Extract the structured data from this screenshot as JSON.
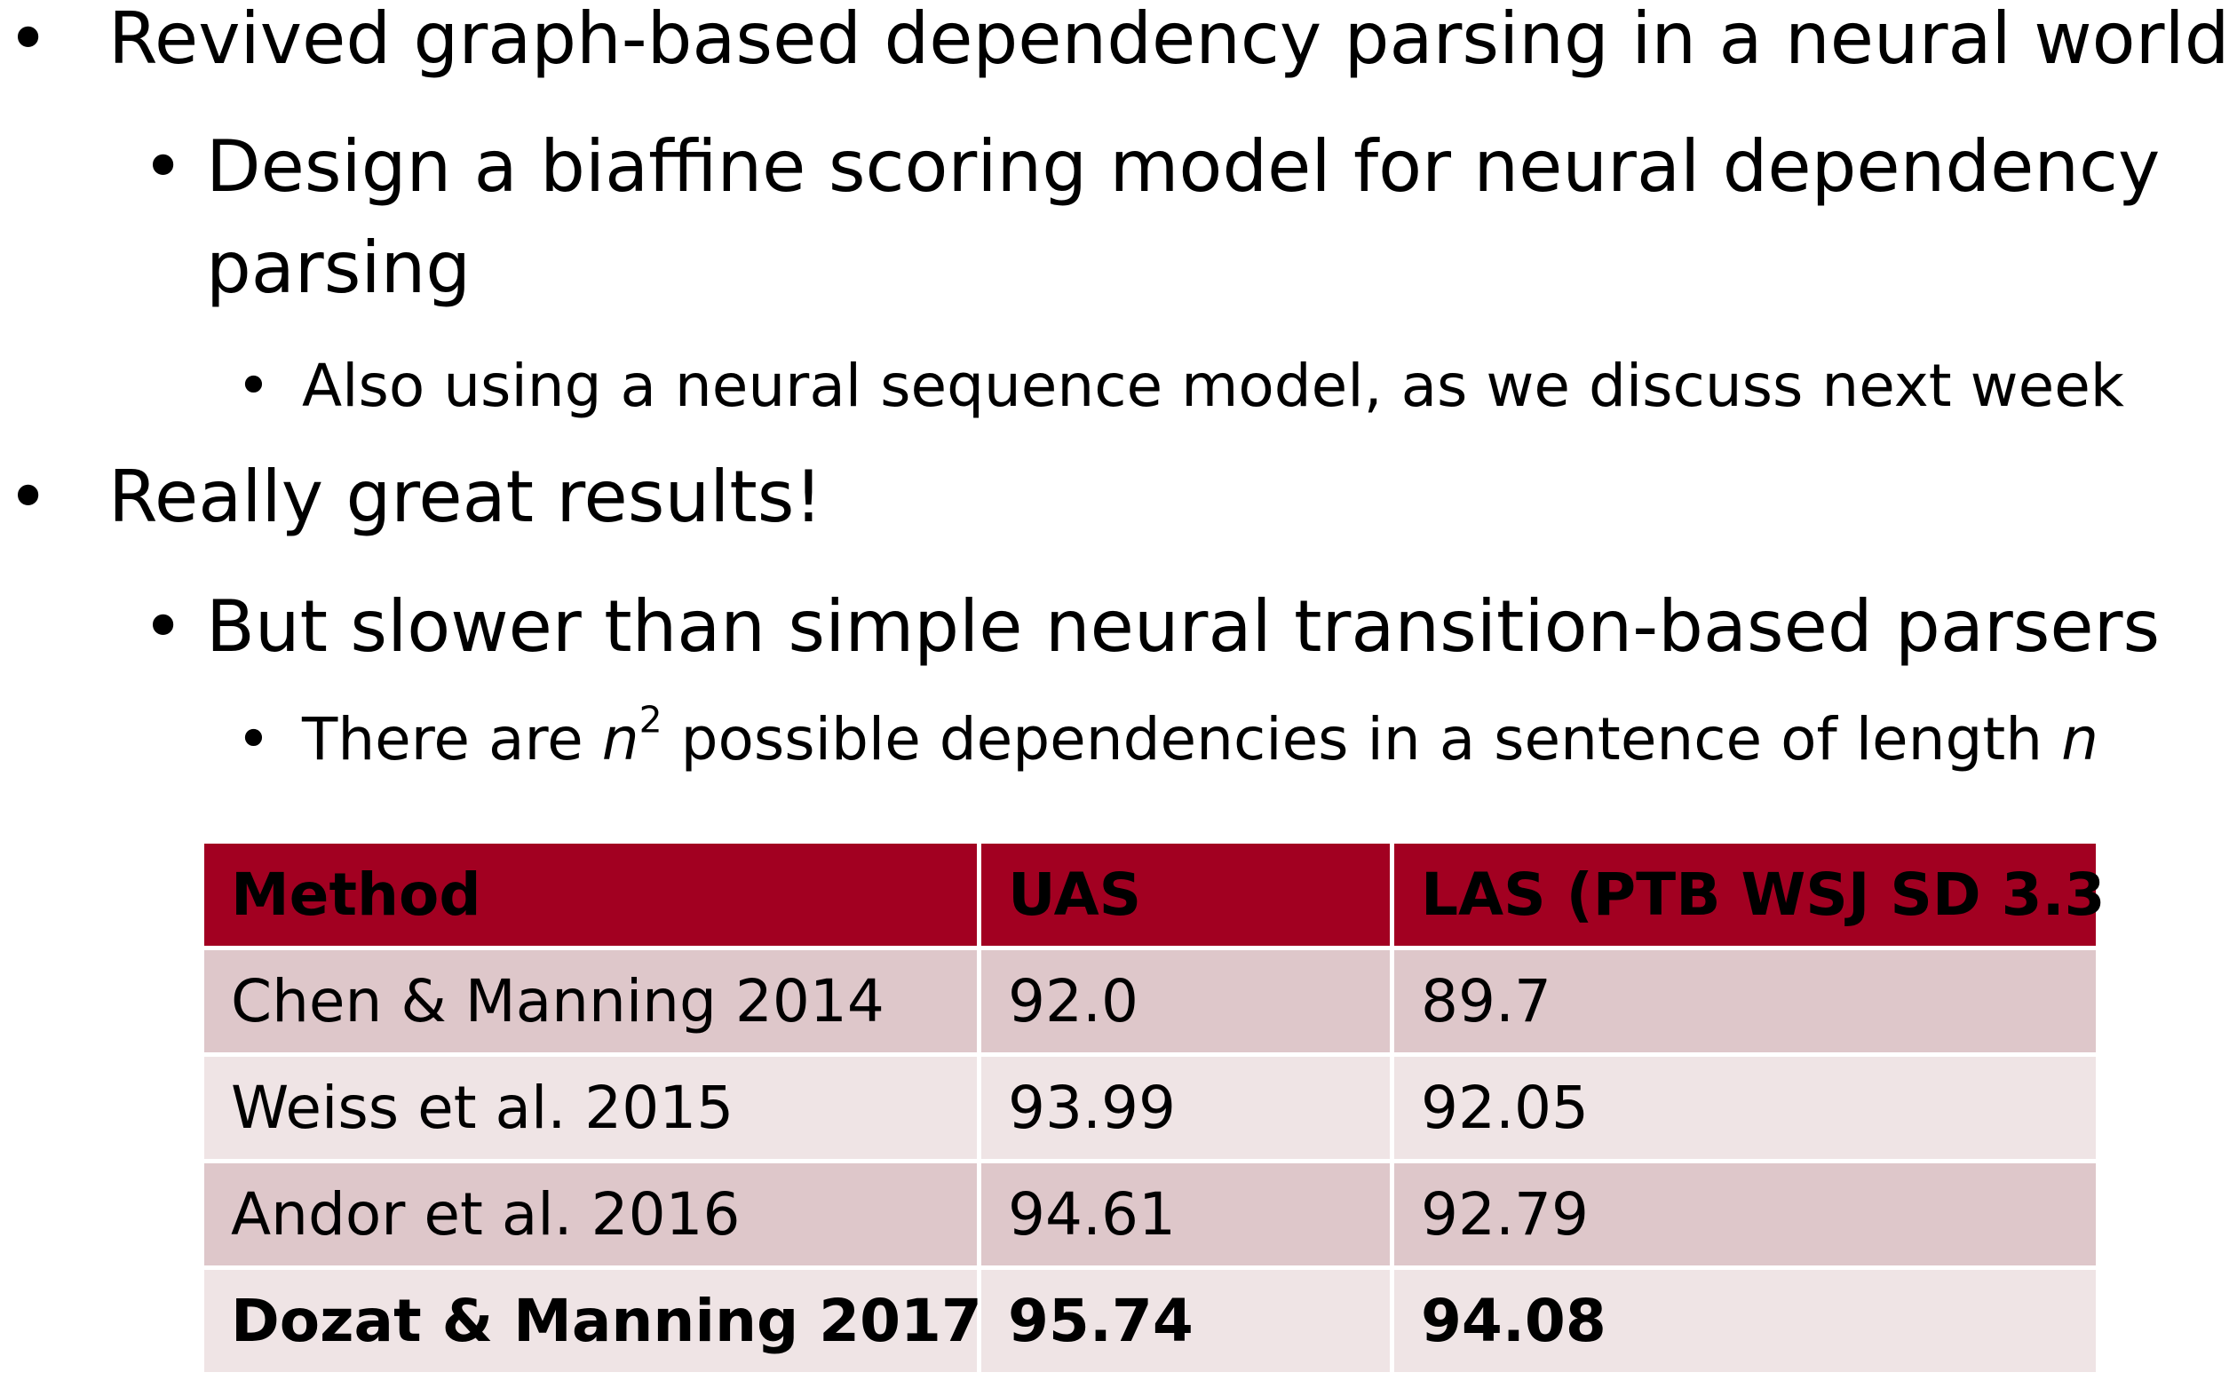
{
  "bullets": [
    {
      "level": 1,
      "text": "Revived graph-based dependency parsing in a neural world"
    },
    {
      "level": 2,
      "lines": [
        "Design a biaffine scoring model for neural dependency",
        "parsing"
      ]
    },
    {
      "level": 3,
      "text": "Also using a neural sequence model, as we discuss next week"
    },
    {
      "level": 1,
      "text": "Really great results!"
    },
    {
      "level": 2,
      "text": "But slower than simple neural transition-based parsers"
    },
    {
      "level": 3,
      "parts": {
        "before": "There are ",
        "var1": "n",
        "sup": "2",
        "middle": " possible dependencies in a sentence of length ",
        "var2": "n"
      }
    }
  ],
  "bullet_glyph": "•",
  "table": {
    "headers": [
      "Method",
      "UAS",
      "LAS (PTB WSJ SD 3.3"
    ],
    "rows": [
      [
        "Chen & Manning 2014",
        "92.0",
        "89.7"
      ],
      [
        "Weiss et al. 2015",
        "93.99",
        "92.05"
      ],
      [
        "Andor et al. 2016",
        "94.61",
        "92.79"
      ],
      [
        "Dozat & Manning 2017",
        "95.74",
        "94.08"
      ]
    ],
    "bold_row": 3
  },
  "colors": {
    "header_bg": "#a20021",
    "row_dark": "#dec7ca",
    "row_light": "#efe4e5"
  }
}
